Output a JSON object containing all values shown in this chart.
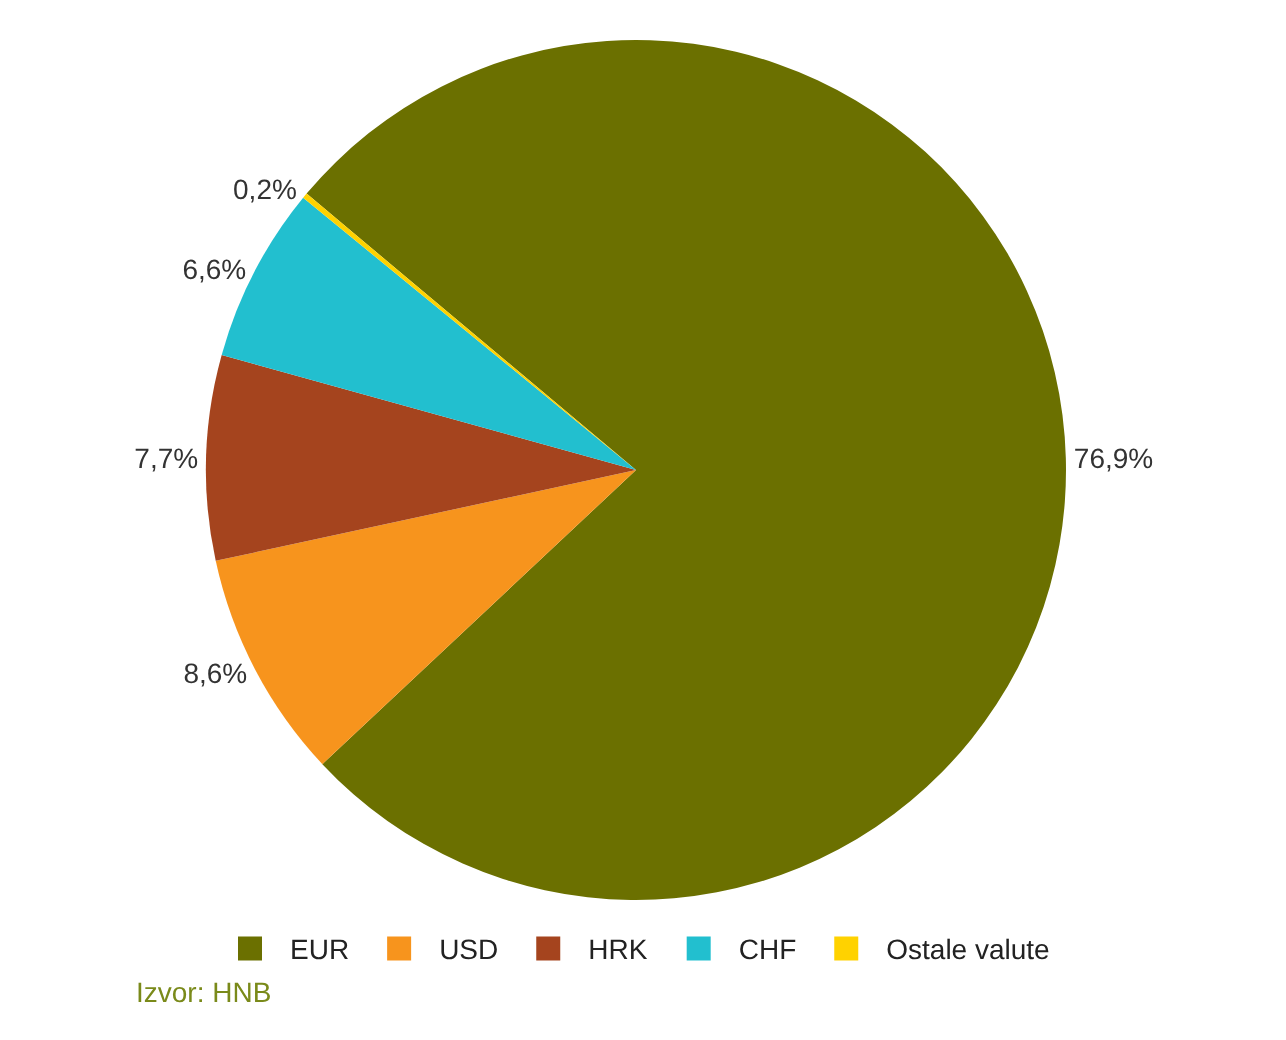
{
  "chart_data": {
    "type": "pie",
    "categories": [
      "EUR",
      "USD",
      "HRK",
      "CHF",
      "Ostale valute"
    ],
    "values": [
      76.9,
      8.6,
      7.7,
      6.6,
      0.2
    ],
    "value_labels": [
      "76,9%",
      "8,6%",
      "7,7%",
      "6,6%",
      "0,2%"
    ],
    "colors": [
      "#6b7000",
      "#f7941d",
      "#a5441e",
      "#22bfcf",
      "#ffd200"
    ],
    "legend": "bottom",
    "annotations": [
      "Izvor: HNB"
    ]
  }
}
